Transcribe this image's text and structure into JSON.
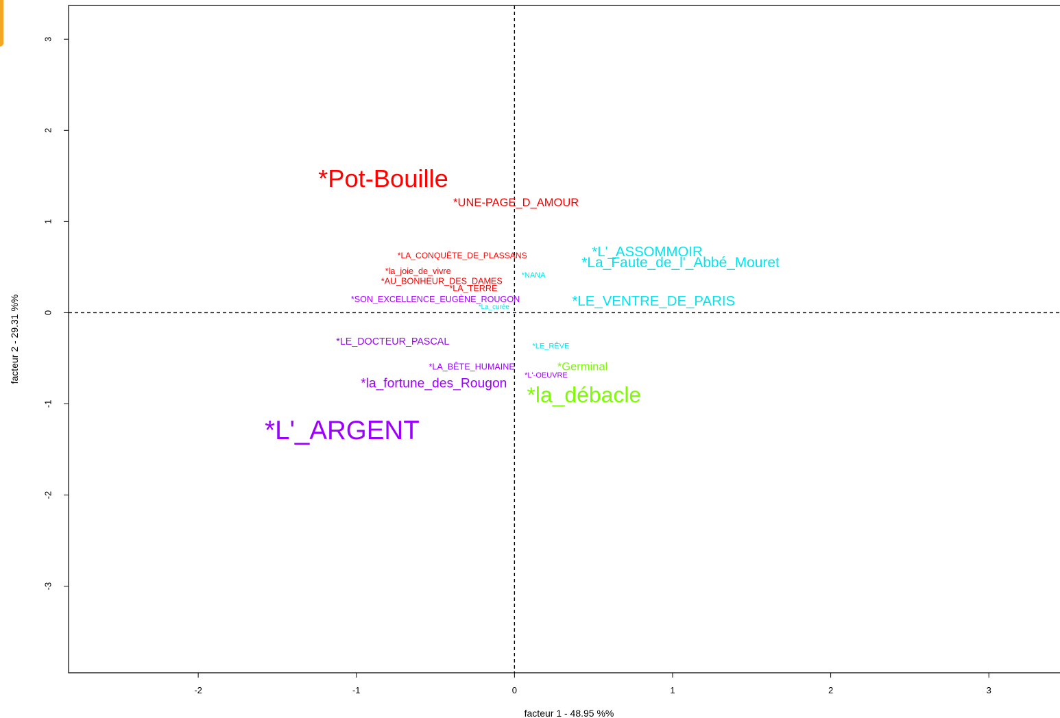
{
  "chart_data": {
    "type": "scatter",
    "title": "",
    "xlabel": "facteur  1  - 48.95 %%",
    "ylabel": "facteur 2 - 29.31 %%",
    "xlim": [
      -2.82,
      3.45
    ],
    "ylim": [
      -3.95,
      3.37
    ],
    "x_ticks": [
      "-2",
      "-1",
      "0",
      "1",
      "2",
      "3"
    ],
    "y_ticks": [
      "3",
      "2",
      "1",
      "0",
      "-1",
      "-2",
      "-3"
    ],
    "reference_lines": {
      "x": 0,
      "y": 0,
      "style": "dashed"
    },
    "grid": false,
    "colors": {
      "red": "#ff0000",
      "cyan": "#00e5ee",
      "purple": "#9b00ff",
      "green": "#7cfc00"
    },
    "points": [
      {
        "label": "*Pot-Bouille",
        "x": -0.83,
        "y": 1.45,
        "weight": 3.3,
        "color": "red"
      },
      {
        "label": "*UNE-PAGE_D_AMOUR",
        "x": 0.01,
        "y": 1.2,
        "weight": 1.5,
        "color": "red"
      },
      {
        "label": "*LA_CONQUÊTE_DE_PLASSANS",
        "x": -0.33,
        "y": 0.62,
        "weight": 1.1,
        "color": "red"
      },
      {
        "label": "*la_joie_de_vivre",
        "x": -0.61,
        "y": 0.45,
        "weight": 1.15,
        "color": "red"
      },
      {
        "label": "*AU_BONHEUR_DES_DAMES",
        "x": -0.46,
        "y": 0.34,
        "weight": 1.15,
        "color": "red"
      },
      {
        "label": "*LA_TERRE",
        "x": -0.26,
        "y": 0.26,
        "weight": 1.15,
        "color": "red"
      },
      {
        "label": "*L'_ASSOMMOIR",
        "x": 0.84,
        "y": 0.66,
        "weight": 1.85,
        "color": "cyan"
      },
      {
        "label": "*La_Faute_de_l'_Abbé_Mouret",
        "x": 1.05,
        "y": 0.54,
        "weight": 1.9,
        "color": "cyan"
      },
      {
        "label": "*NANA",
        "x": 0.12,
        "y": 0.41,
        "weight": 1.0,
        "color": "cyan"
      },
      {
        "label": "*LE_VENTRE_DE_PARIS",
        "x": 0.88,
        "y": 0.12,
        "weight": 1.85,
        "color": "cyan"
      },
      {
        "label": "*La_curée",
        "x": -0.13,
        "y": 0.06,
        "weight": 0.9,
        "color": "cyan"
      },
      {
        "label": "*LE_RÊVE",
        "x": 0.23,
        "y": -0.37,
        "weight": 1.0,
        "color": "cyan"
      },
      {
        "label": "*SON_EXCELLENCE_EUGÈNE_ROUGON",
        "x": -0.5,
        "y": 0.14,
        "weight": 1.15,
        "color": "purple"
      },
      {
        "label": "*LE_DOCTEUR_PASCAL",
        "x": -0.77,
        "y": -0.32,
        "weight": 1.3,
        "color": "purple"
      },
      {
        "label": "*LA_BÊTE_HUMAINE",
        "x": -0.27,
        "y": -0.6,
        "weight": 1.15,
        "color": "purple"
      },
      {
        "label": "*L'-OEUVRE",
        "x": 0.2,
        "y": -0.69,
        "weight": 1.0,
        "color": "purple"
      },
      {
        "label": "*la_fortune_des_Rougon",
        "x": -0.51,
        "y": -0.78,
        "weight": 1.75,
        "color": "purple"
      },
      {
        "label": "*L'_ARGENT",
        "x": -1.09,
        "y": -1.31,
        "weight": 3.5,
        "color": "purple"
      },
      {
        "label": "*Germinal",
        "x": 0.43,
        "y": -0.6,
        "weight": 1.5,
        "color": "green"
      },
      {
        "label": "*la_débacle",
        "x": 0.44,
        "y": -0.92,
        "weight": 2.9,
        "color": "green"
      }
    ]
  }
}
